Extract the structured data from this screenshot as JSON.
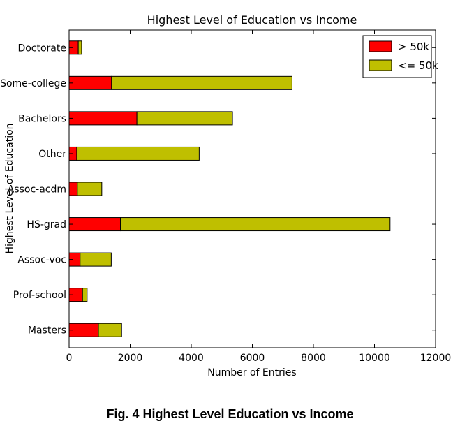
{
  "chart_data": {
    "type": "bar",
    "orientation": "horizontal",
    "stacked": true,
    "title": "Highest Level of Education vs Income",
    "xlabel": "Number of Entries",
    "ylabel": "Highest Level of Education",
    "categories": [
      "Doctorate",
      "Some-college",
      "Bachelors",
      "Other",
      "Assoc-acdm",
      "HS-grad",
      "Assoc-voc",
      "Prof-school",
      "Masters"
    ],
    "series": [
      {
        "name": "> 50k",
        "color": "#ff0000",
        "values": [
          300,
          1390,
          2220,
          250,
          270,
          1680,
          360,
          440,
          960
        ]
      },
      {
        "name": "<= 50k",
        "color": "#bfbf00",
        "values": [
          110,
          5910,
          3130,
          4010,
          800,
          8830,
          1020,
          150,
          760
        ]
      }
    ],
    "xlim": [
      0,
      12000
    ],
    "xticks": [
      0,
      2000,
      4000,
      6000,
      8000,
      10000,
      12000
    ],
    "legend_position": "top-right",
    "grid": false
  },
  "caption": "Fig. 4 Highest Level Education vs Income"
}
